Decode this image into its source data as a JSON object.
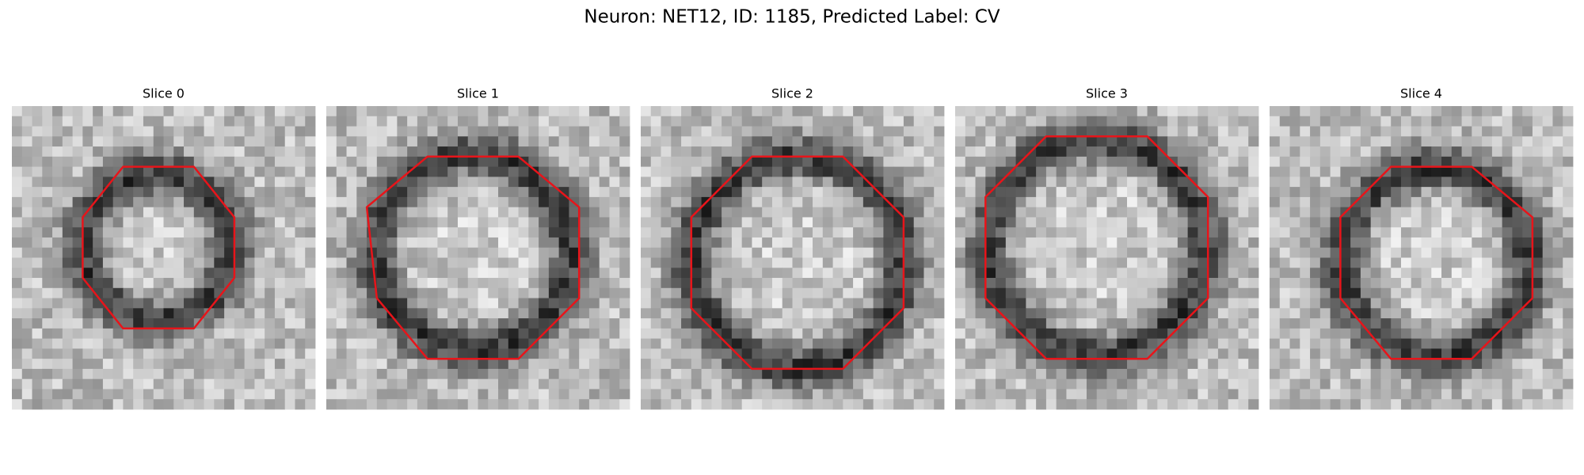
{
  "title": "Neuron: NET12, ID: 1185, Predicted Label: CV",
  "panels": [
    {
      "title": "Slice 0"
    },
    {
      "title": "Slice 1"
    },
    {
      "title": "Slice 2"
    },
    {
      "title": "Slice 3"
    },
    {
      "title": "Slice 4"
    }
  ]
}
